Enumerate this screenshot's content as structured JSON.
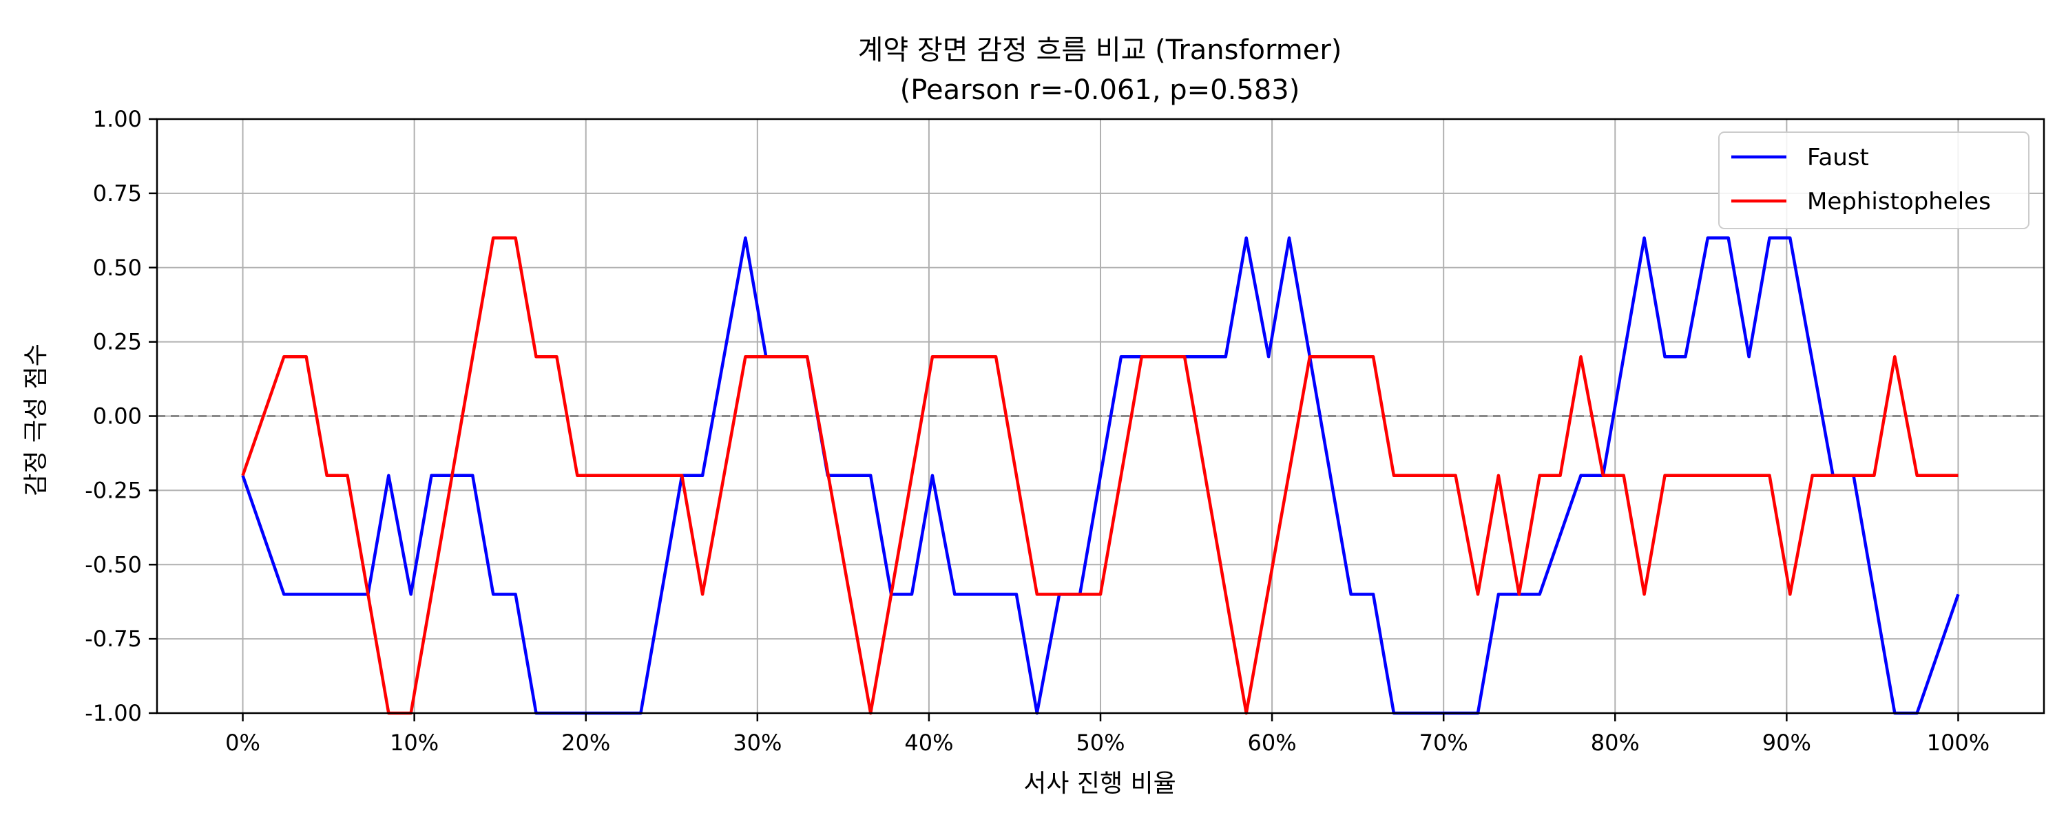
{
  "chart_data": {
    "type": "line",
    "title": "계약 장면 감정 흐름 비교 (Transformer)",
    "subtitle": "(Pearson r=-0.061, p=0.583)",
    "xlabel": "서사 진행 비율",
    "ylabel": "감정 극성 점수",
    "xlim": [
      -5,
      105
    ],
    "ylim": [
      -1.0,
      1.0
    ],
    "x_ticks": [
      0,
      10,
      20,
      30,
      40,
      50,
      60,
      70,
      80,
      90,
      100
    ],
    "x_tick_labels": [
      "0%",
      "10%",
      "20%",
      "30%",
      "40%",
      "50%",
      "60%",
      "70%",
      "80%",
      "90%",
      "100%"
    ],
    "y_ticks": [
      -1.0,
      -0.75,
      -0.5,
      -0.25,
      0.0,
      0.25,
      0.5,
      0.75,
      1.0
    ],
    "y_tick_labels": [
      "-1.00",
      "-0.75",
      "-0.50",
      "-0.25",
      "0.00",
      "0.25",
      "0.50",
      "0.75",
      "1.00"
    ],
    "grid": true,
    "zero_line": true,
    "legend_position": "top-right",
    "series": [
      {
        "name": "Faust",
        "color": "#0000ff",
        "points": [
          [
            0,
            -0.2
          ],
          [
            2.4,
            -0.6
          ],
          [
            7.3,
            -0.6
          ],
          [
            8.5,
            -0.2
          ],
          [
            9.8,
            -0.6
          ],
          [
            11.0,
            -0.2
          ],
          [
            13.4,
            -0.2
          ],
          [
            14.6,
            -0.6
          ],
          [
            15.9,
            -0.6
          ],
          [
            17.1,
            -1.0
          ],
          [
            23.2,
            -1.0
          ],
          [
            25.6,
            -0.2
          ],
          [
            26.8,
            -0.2
          ],
          [
            29.3,
            0.6
          ],
          [
            30.5,
            0.2
          ],
          [
            32.9,
            0.2
          ],
          [
            34.1,
            -0.2
          ],
          [
            36.6,
            -0.2
          ],
          [
            37.8,
            -0.6
          ],
          [
            39.0,
            -0.6
          ],
          [
            40.2,
            -0.2
          ],
          [
            41.5,
            -0.6
          ],
          [
            45.1,
            -0.6
          ],
          [
            46.3,
            -1.0
          ],
          [
            47.6,
            -0.6
          ],
          [
            48.8,
            -0.6
          ],
          [
            51.2,
            0.2
          ],
          [
            57.3,
            0.2
          ],
          [
            58.5,
            0.6
          ],
          [
            59.8,
            0.2
          ],
          [
            61.0,
            0.6
          ],
          [
            62.2,
            0.2
          ],
          [
            64.6,
            -0.6
          ],
          [
            65.9,
            -0.6
          ],
          [
            67.1,
            -1.0
          ],
          [
            72.0,
            -1.0
          ],
          [
            73.2,
            -0.6
          ],
          [
            75.6,
            -0.6
          ],
          [
            78.0,
            -0.2
          ],
          [
            79.3,
            -0.2
          ],
          [
            81.7,
            0.6
          ],
          [
            82.9,
            0.2
          ],
          [
            84.1,
            0.2
          ],
          [
            85.4,
            0.6
          ],
          [
            86.6,
            0.6
          ],
          [
            87.8,
            0.2
          ],
          [
            89.0,
            0.6
          ],
          [
            90.2,
            0.6
          ],
          [
            92.7,
            -0.2
          ],
          [
            93.9,
            -0.2
          ],
          [
            96.3,
            -1.0
          ],
          [
            97.6,
            -1.0
          ],
          [
            100,
            -0.6
          ]
        ]
      },
      {
        "name": "Mephistopheles",
        "color": "#ff0000",
        "points": [
          [
            0,
            -0.2
          ],
          [
            2.4,
            0.2
          ],
          [
            3.7,
            0.2
          ],
          [
            4.9,
            -0.2
          ],
          [
            6.1,
            -0.2
          ],
          [
            8.5,
            -1.0
          ],
          [
            9.8,
            -1.0
          ],
          [
            14.6,
            0.6
          ],
          [
            15.9,
            0.6
          ],
          [
            17.1,
            0.2
          ],
          [
            18.3,
            0.2
          ],
          [
            19.5,
            -0.2
          ],
          [
            25.6,
            -0.2
          ],
          [
            26.8,
            -0.6
          ],
          [
            29.3,
            0.2
          ],
          [
            32.9,
            0.2
          ],
          [
            36.6,
            -1.0
          ],
          [
            40.2,
            0.2
          ],
          [
            43.9,
            0.2
          ],
          [
            46.3,
            -0.6
          ],
          [
            50.0,
            -0.6
          ],
          [
            52.4,
            0.2
          ],
          [
            54.9,
            0.2
          ],
          [
            58.5,
            -1.0
          ],
          [
            62.2,
            0.2
          ],
          [
            65.9,
            0.2
          ],
          [
            67.1,
            -0.2
          ],
          [
            70.7,
            -0.2
          ],
          [
            72.0,
            -0.6
          ],
          [
            73.2,
            -0.2
          ],
          [
            74.4,
            -0.6
          ],
          [
            75.6,
            -0.2
          ],
          [
            76.8,
            -0.2
          ],
          [
            78.0,
            0.2
          ],
          [
            79.3,
            -0.2
          ],
          [
            80.5,
            -0.2
          ],
          [
            81.7,
            -0.6
          ],
          [
            82.9,
            -0.2
          ],
          [
            89.0,
            -0.2
          ],
          [
            90.2,
            -0.6
          ],
          [
            91.5,
            -0.2
          ],
          [
            95.1,
            -0.2
          ],
          [
            96.3,
            0.2
          ],
          [
            97.6,
            -0.2
          ],
          [
            100,
            -0.2
          ]
        ]
      }
    ]
  }
}
